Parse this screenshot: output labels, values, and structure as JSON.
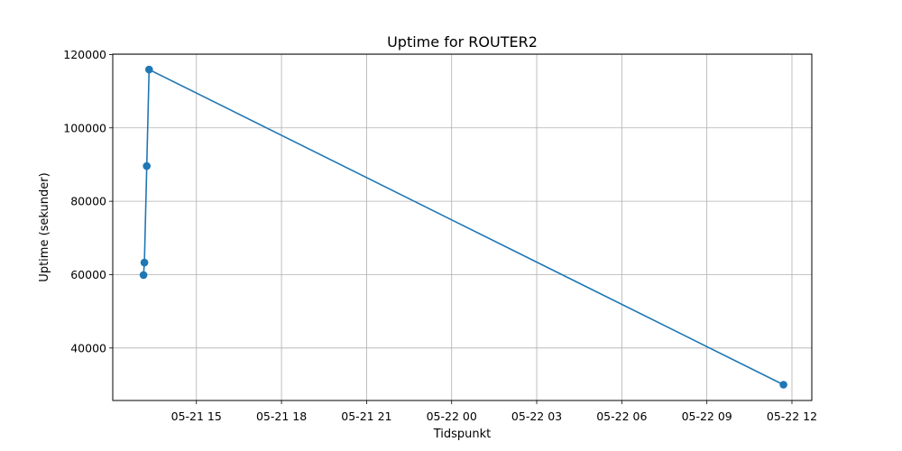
{
  "chart_data": {
    "type": "line",
    "title": "Uptime for ROUTER2",
    "xlabel": "Tidspunkt",
    "ylabel": "Uptime (sekunder)",
    "x_ticks": [
      "05-21 15",
      "05-21 18",
      "05-21 21",
      "05-22 00",
      "05-22 03",
      "05-22 06",
      "05-22 09",
      "05-22 12"
    ],
    "y_ticks": [
      "40000",
      "60000",
      "80000",
      "100000",
      "120000"
    ],
    "xlim": [
      "2024-05-21 12:03",
      "2024-05-22 12:42"
    ],
    "ylim": [
      25700,
      120100
    ],
    "grid": true,
    "line_color": "#1f77b4",
    "series": [
      {
        "x": [
          "2024-05-21 13:08",
          "2024-05-21 13:10",
          "2024-05-21 13:15",
          "2024-05-21 13:20",
          "2024-05-22 11:42"
        ],
        "y": [
          59900,
          63300,
          89600,
          115900,
          30000
        ]
      }
    ]
  }
}
